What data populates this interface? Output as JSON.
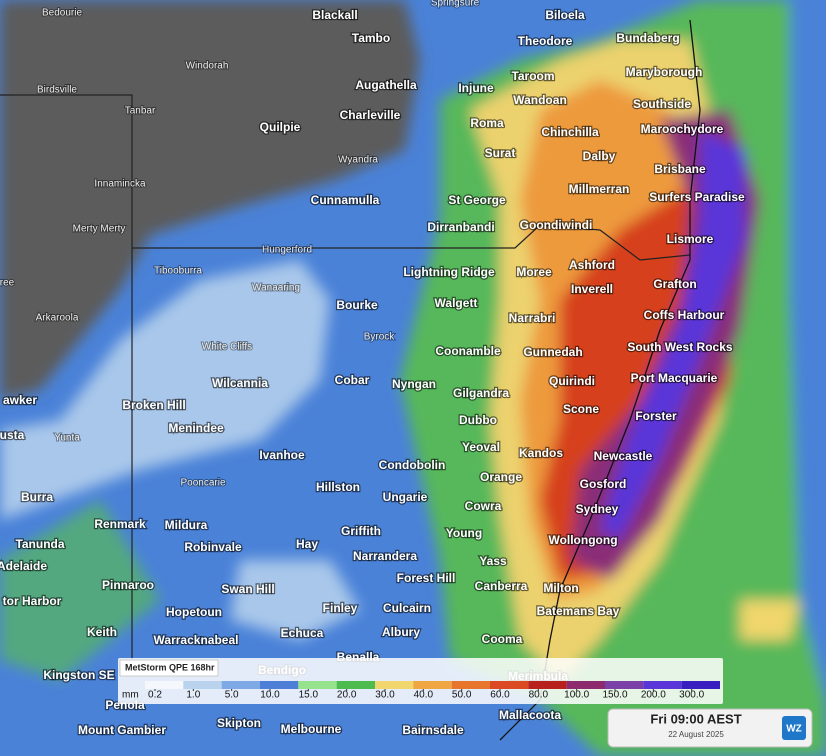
{
  "places": [
    "Bedourie",
    "Blackall",
    "Springsure",
    "Biloela",
    "Tambo",
    "Theodore",
    "Bundaberg",
    "Windorah",
    "Augathella",
    "Taroom",
    "Maryborough",
    "Birdsville",
    "Injune",
    "Wandoan",
    "Southside",
    "Tanbar",
    "Charleville",
    "Quilpie",
    "Roma",
    "Chinchilla",
    "Maroochydore",
    "Surat",
    "Dalby",
    "Wyandra",
    "Brisbane",
    "Innamincka",
    "Millmerran",
    "Surfers Paradise",
    "Cunnamulla",
    "St George",
    "Goondiwindi",
    "Dirranbandi",
    "Merty Merty",
    "Lismore",
    "Hungerford",
    "Ashford",
    "Lightning Ridge",
    "Moree",
    "Tibooburra",
    "Wanaaring",
    "Grafton",
    "Inverell",
    "Bourke",
    "Walgett",
    "ree",
    "Narrabri",
    "Coffs Harbour",
    "Arkaroola",
    "Byrock",
    "White Cliffs",
    "Gunnedah",
    "Coonamble",
    "South West Rocks",
    "Wilcannia",
    "Cobar",
    "Nyngan",
    "Quirindi",
    "Port Macquarie",
    "Gilgandra",
    "awker",
    "Broken Hill",
    "Scone",
    "Forster",
    "Menindee",
    "Dubbo",
    "usta",
    "Yunta",
    "Yeoval",
    "Kandos",
    "Newcastle",
    "Ivanhoe",
    "Condobolin",
    "Pooncarie",
    "Orange",
    "Gosford",
    "Hillston",
    "Burra",
    "Ungarie",
    "Cowra",
    "Sydney",
    "Renmark",
    "Mildura",
    "Griffith",
    "Hay",
    "Young",
    "Tanunda",
    "Wollongong",
    "Robinvale",
    "Narrandera",
    "Yass",
    "Adelaide",
    "Forest Hill",
    "Pinnaroo",
    "Canberra",
    "Milton",
    "Swan Hill",
    "tor Harbor",
    "Finley",
    "Culcairn",
    "Batemans Bay",
    "Hopetoun",
    "Keith",
    "Echuca",
    "Albury",
    "Cooma",
    "Warracknabeal",
    "Bendigo",
    "Kingston SE",
    "Benalla",
    "Merimbula",
    "Penola",
    "Mallacoota",
    "Mount Gambier",
    "Skipton",
    "Melbourne",
    "Bairnsdale"
  ],
  "legend": {
    "title": "MetStorm QPE 168hr",
    "unit": "mm",
    "ticks": [
      {
        "value": 0.2,
        "label": "0.2"
      },
      {
        "value": 1,
        "label": "1.0"
      },
      {
        "value": 5,
        "label": "5.0"
      },
      {
        "value": 10,
        "label": "10.0"
      },
      {
        "value": 15,
        "label": "15.0"
      },
      {
        "value": 20,
        "label": "20.0"
      },
      {
        "value": 30,
        "label": "30.0"
      },
      {
        "value": 40,
        "label": "40.0"
      },
      {
        "value": 50,
        "label": "50.0"
      },
      {
        "value": 60,
        "label": "60.0"
      },
      {
        "value": 80,
        "label": "80.0"
      },
      {
        "value": 100,
        "label": "100.0"
      },
      {
        "value": 150,
        "label": "150.0"
      },
      {
        "value": 200,
        "label": "200.0"
      },
      {
        "value": 300,
        "label": "300.0"
      }
    ],
    "colors": [
      "#f4f7fb",
      "#b9d2ee",
      "#7fa9e4",
      "#4d7fd6",
      "#97e38d",
      "#4dbb4d",
      "#f0d66c",
      "#f0a642",
      "#e8752c",
      "#db4a22",
      "#b8201e",
      "#8e2b6e",
      "#7b3fa8",
      "#5a36d8",
      "#3a1fc0"
    ]
  },
  "time": {
    "label": "Fri 09:00 AEST",
    "date": "22 August 2025",
    "logo": "WZ"
  }
}
